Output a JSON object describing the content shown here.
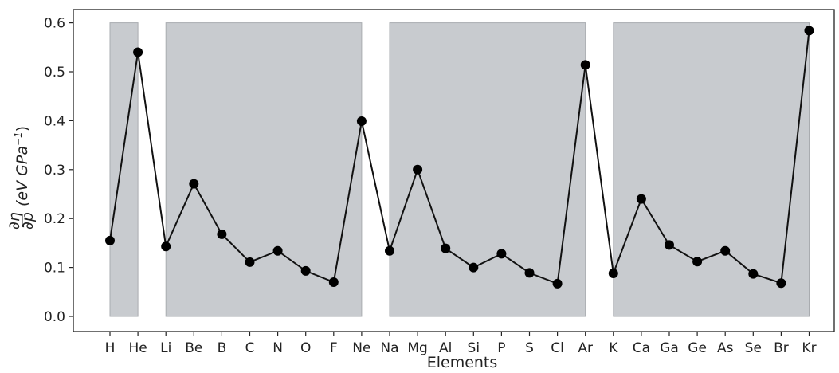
{
  "chart_data": {
    "type": "line",
    "categories": [
      "H",
      "He",
      "Li",
      "Be",
      "B",
      "C",
      "N",
      "O",
      "F",
      "Ne",
      "Na",
      "Mg",
      "Al",
      "Si",
      "P",
      "S",
      "Cl",
      "Ar",
      "K",
      "Ca",
      "Ga",
      "Ge",
      "As",
      "Se",
      "Br",
      "Kr"
    ],
    "values": [
      0.155,
      0.54,
      0.143,
      0.271,
      0.168,
      0.111,
      0.134,
      0.093,
      0.07,
      0.399,
      0.134,
      0.3,
      0.139,
      0.1,
      0.128,
      0.089,
      0.067,
      0.514,
      0.088,
      0.24,
      0.146,
      0.112,
      0.134,
      0.087,
      0.068,
      0.584
    ],
    "xlabel": "Elements",
    "ylabel_math": {
      "numerator": "∂η",
      "denominator": "∂p",
      "unit": "(eV GPa",
      "exponent": "−1",
      "close": ")"
    },
    "ylim": [
      -0.02,
      0.63
    ],
    "yticks": [
      "0.0",
      "0.1",
      "0.2",
      "0.3",
      "0.4",
      "0.5",
      "0.6"
    ],
    "ytick_values": [
      0.0,
      0.1,
      0.2,
      0.3,
      0.4,
      0.5,
      0.6
    ],
    "shaded_regions": [
      {
        "from": "H",
        "to": "He",
        "ymax": 0.6
      },
      {
        "from": "Li",
        "to": "Ne",
        "ymax": 0.6
      },
      {
        "from": "Na",
        "to": "Ar",
        "ymax": 0.6
      },
      {
        "from": "K",
        "to": "Kr",
        "ymax": 0.6
      }
    ],
    "colors": {
      "line": "#111111",
      "marker": "#000000",
      "shade": "#c8cbcf",
      "shade_edge": "#a9acb0"
    },
    "grid": false,
    "legend": "none"
  }
}
